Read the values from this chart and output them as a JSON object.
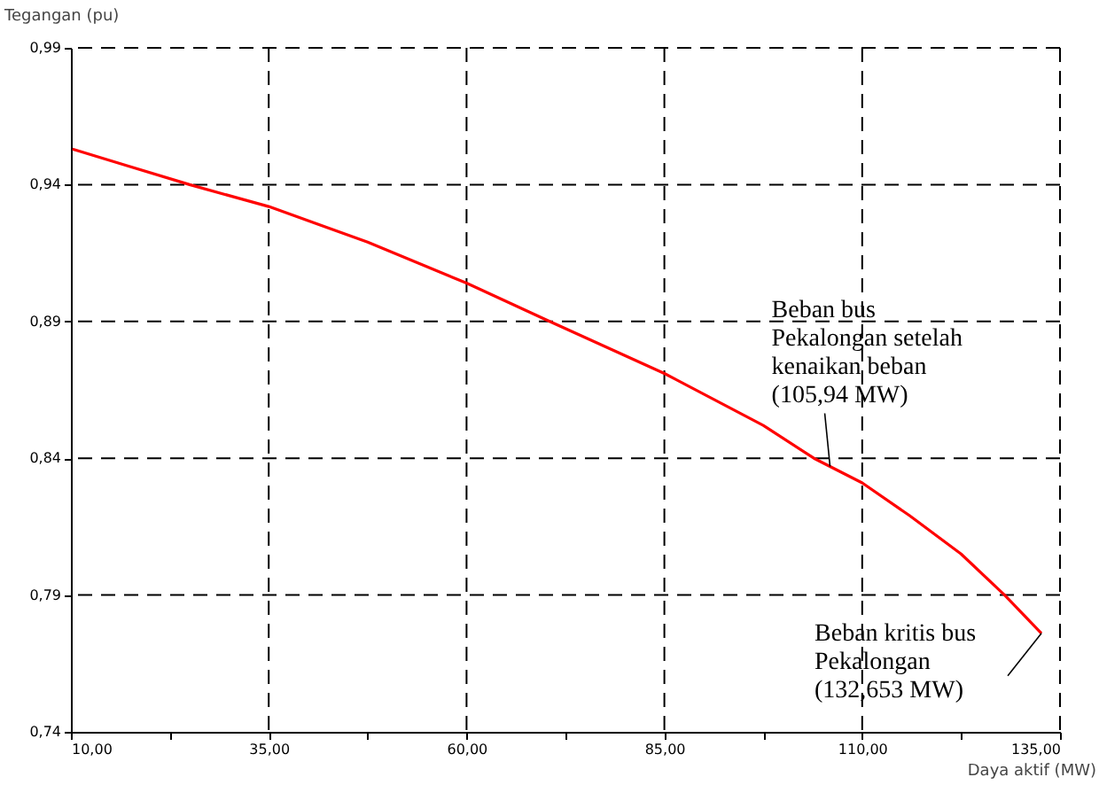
{
  "chart_data": {
    "type": "line",
    "xlabel": "Daya aktif (MW)",
    "ylabel": "Tegangan (pu)",
    "x": [
      10.2,
      17,
      25,
      35,
      47.5,
      60,
      70.5,
      85,
      97.5,
      103.9,
      110,
      116,
      122.5,
      128,
      132.653
    ],
    "series": [
      {
        "color": "#ff0000",
        "values": [
          0.953,
          0.947,
          0.94,
          0.932,
          0.919,
          0.904,
          0.89,
          0.871,
          0.852,
          0.84,
          0.831,
          0.819,
          0.805,
          0.79,
          0.776
        ]
      }
    ],
    "xlim": [
      10,
      135
    ],
    "ylim": [
      0.74,
      0.99
    ],
    "xticks": [
      {
        "value": 10,
        "label": "10,00"
      },
      {
        "value": 22.5,
        "label": null
      },
      {
        "value": 35,
        "label": "35,00"
      },
      {
        "value": 47.5,
        "label": null
      },
      {
        "value": 60,
        "label": "60,00"
      },
      {
        "value": 72.5,
        "label": null
      },
      {
        "value": 85,
        "label": "85,00"
      },
      {
        "value": 97.5,
        "label": null
      },
      {
        "value": 110,
        "label": "110,00"
      },
      {
        "value": 122.5,
        "label": null
      },
      {
        "value": 135,
        "label": "135,00"
      }
    ],
    "yticks": [
      {
        "value": 0.74,
        "label": "0,74"
      },
      {
        "value": 0.79,
        "label": "0,79"
      },
      {
        "value": 0.84,
        "label": "0,84"
      },
      {
        "value": 0.89,
        "label": "0,89"
      },
      {
        "value": 0.94,
        "label": "0,94"
      },
      {
        "value": 0.99,
        "label": "0,99"
      }
    ],
    "grid": true,
    "line_style": "solid",
    "marker": "none",
    "annotations": [
      {
        "text": "Beban bus\nPekalongan setelah\nkenaikan beban\n(105,94 MW)",
        "x": 105.94,
        "y": 0.837
      },
      {
        "text": "Beban kritis bus\nPekalongan\n(132,653 MW)",
        "x": 132.653,
        "y": 0.776
      }
    ]
  }
}
